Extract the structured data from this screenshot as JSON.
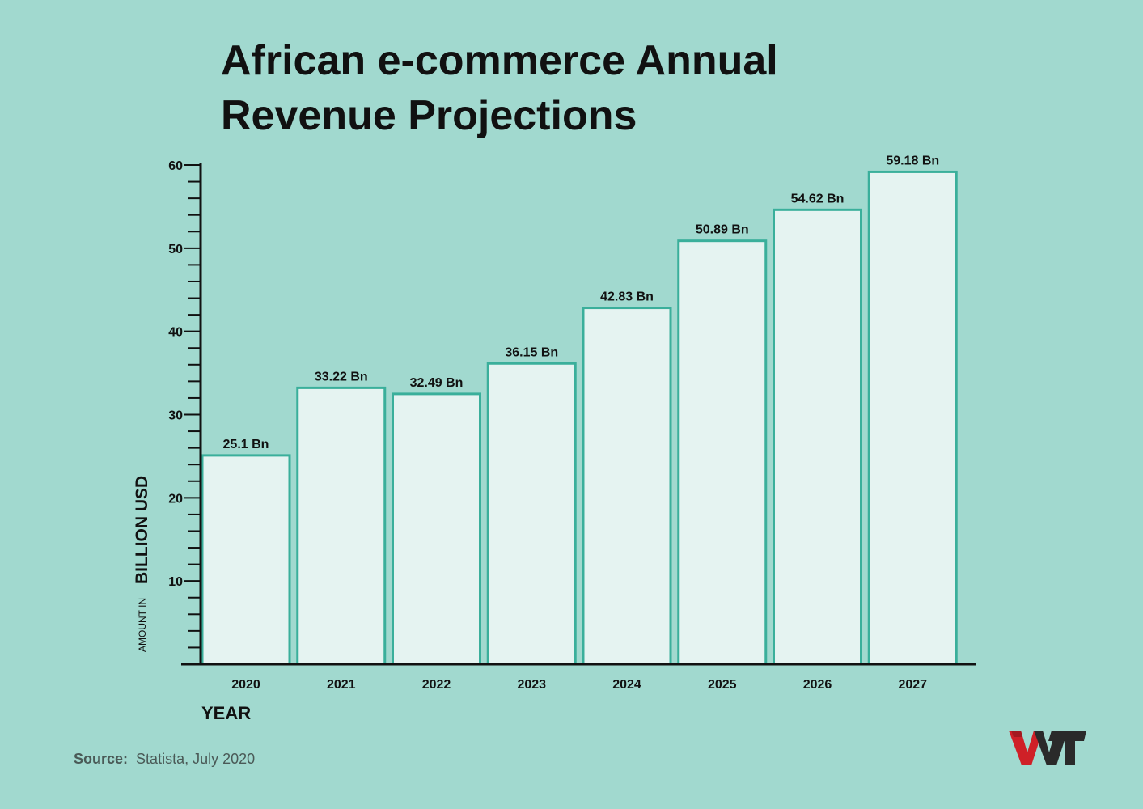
{
  "colors": {
    "background": "#a1d9cf",
    "bar_fill": "#e5f3f1",
    "bar_stroke": "#3aaf9b",
    "axis": "#111111",
    "text": "#111111",
    "source_label": "#4a5a57",
    "logo_red": "#cf2027",
    "logo_dark": "#2a2a2a"
  },
  "logo": {
    "text": "WT",
    "icon": "wt-logo-icon"
  },
  "source": {
    "label": "Source:",
    "text": "Statista, July 2020"
  },
  "chart_data": {
    "type": "bar",
    "title_lines": [
      "African e-commerce Annual",
      "Revenue Projections"
    ],
    "categories": [
      "2020",
      "2021",
      "2022",
      "2023",
      "2024",
      "2025",
      "2026",
      "2027"
    ],
    "values": [
      25.1,
      33.22,
      32.49,
      36.15,
      42.83,
      50.89,
      54.62,
      59.18
    ],
    "data_labels": [
      "25.1 Bn",
      "33.22 Bn",
      "32.49 Bn",
      "36.15 Bn",
      "42.83 Bn",
      "50.89 Bn",
      "54.62 Bn",
      "59.18 Bn"
    ],
    "xlabel": "YEAR",
    "ylabel_prefix": "AMOUNT IN",
    "ylabel_main": "BILLION USD",
    "ylim": [
      0,
      60
    ],
    "y_ticks": [
      10,
      20,
      30,
      40,
      50,
      60
    ],
    "y_minor_step": 2,
    "grid": false,
    "legend": "none"
  }
}
